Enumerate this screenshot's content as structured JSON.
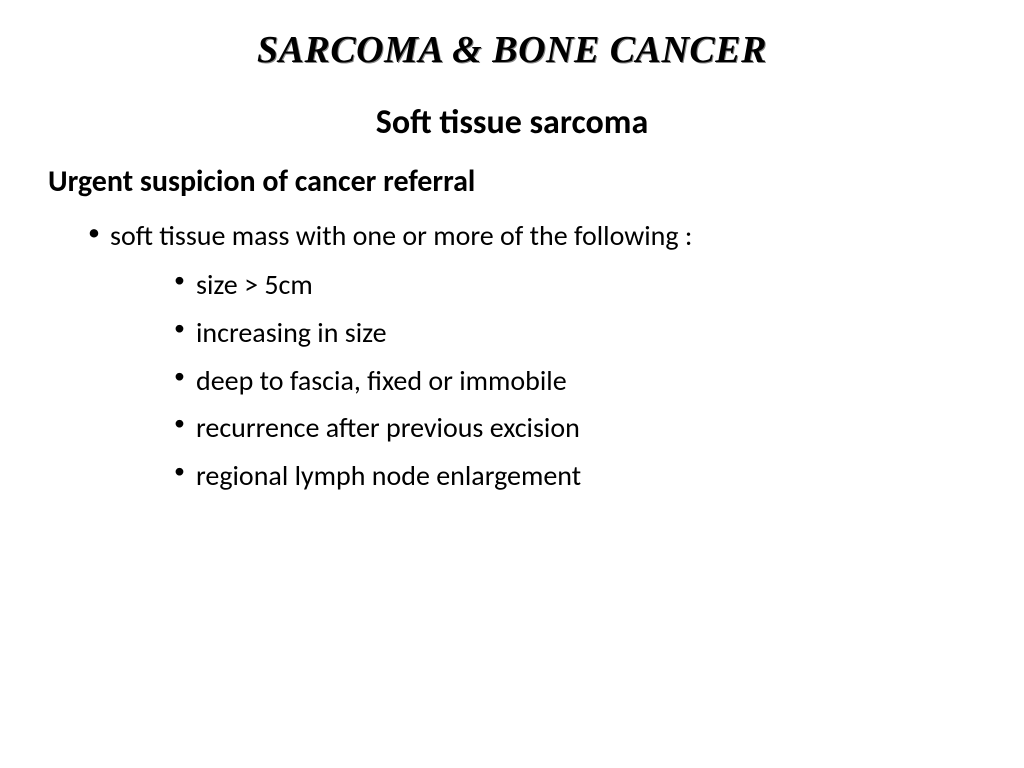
{
  "slide": {
    "title": "SARCOMA & BONE CANCER",
    "subtitle": "Soft tissue sarcoma",
    "section_heading": "Urgent suspicion of cancer referral",
    "bullet_intro": "soft tissue mass with one or more of the following :",
    "sub_bullets": [
      "size > 5cm",
      "increasing in size",
      "deep to fascia, fixed or immobile",
      "recurrence after previous excision",
      "regional lymph node enlargement"
    ],
    "colors": {
      "background": "#ffffff",
      "text": "#000000"
    },
    "fonts": {
      "title_family": "Comic Sans MS",
      "body_family": "Calibri",
      "title_size_pt": 38,
      "subtitle_size_pt": 34,
      "heading_size_pt": 30,
      "body_size_pt": 28
    }
  }
}
